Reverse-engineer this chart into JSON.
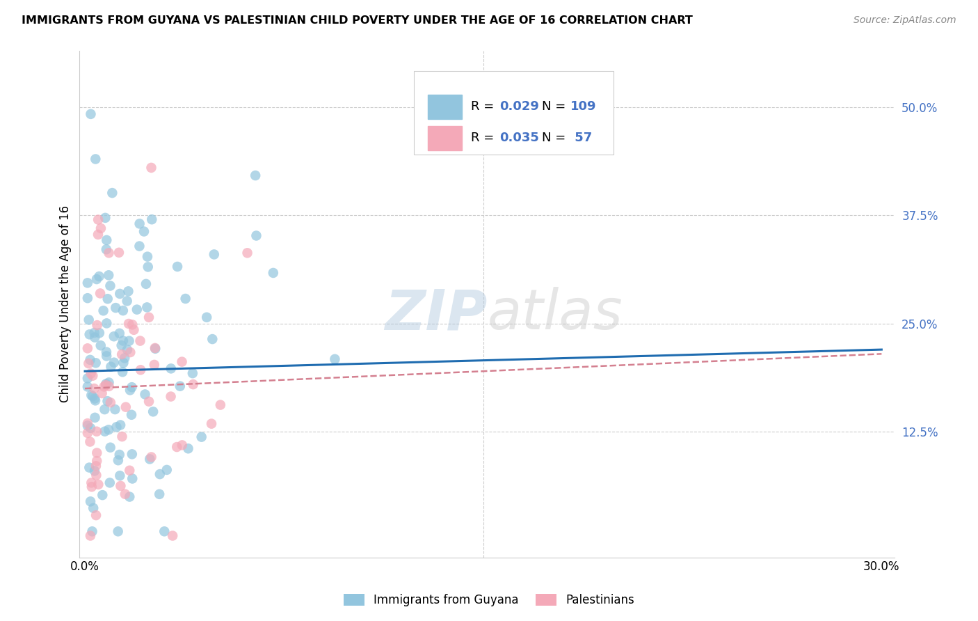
{
  "title": "IMMIGRANTS FROM GUYANA VS PALESTINIAN CHILD POVERTY UNDER THE AGE OF 16 CORRELATION CHART",
  "source": "Source: ZipAtlas.com",
  "ylabel": "Child Poverty Under the Age of 16",
  "yticks": [
    "12.5%",
    "25.0%",
    "37.5%",
    "50.0%"
  ],
  "ytick_vals": [
    0.125,
    0.25,
    0.375,
    0.5
  ],
  "xlim": [
    0.0,
    0.3
  ],
  "ylim": [
    0.0,
    0.55
  ],
  "legend_blue_label": "Immigrants from Guyana",
  "legend_pink_label": "Palestinians",
  "blue_color": "#92c5de",
  "pink_color": "#f4a9b8",
  "trendline_blue": "#1f6cb0",
  "trendline_pink": "#d48090",
  "watermark_zip": "ZIP",
  "watermark_atlas": "atlas",
  "blue_seed": 2023,
  "pink_seed": 4567,
  "N_blue": 109,
  "N_pink": 57,
  "R_blue": 0.029,
  "R_pink": 0.035,
  "blue_R_text": "0.029",
  "blue_N_text": "109",
  "pink_R_text": "0.035",
  "pink_N_text": " 57",
  "accent_color": "#4472c4"
}
